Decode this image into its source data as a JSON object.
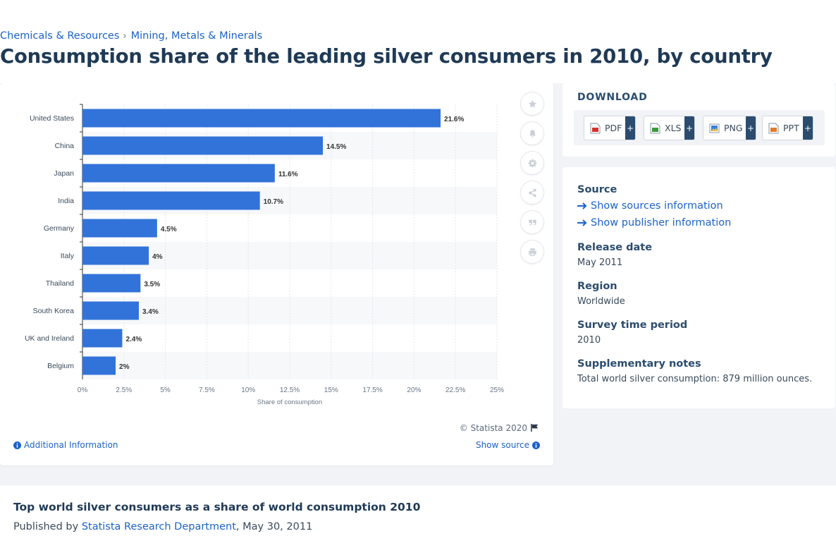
{
  "breadcrumb": {
    "items": [
      "Chemicals & Resources",
      "Mining, Metals & Minerals"
    ],
    "separator": "›"
  },
  "page_title": "Consumption share of the leading silver consumers in 2010, by country",
  "colors": {
    "bar": "#3273d9",
    "accent_blue": "#1c63c8",
    "navy": "#2b4c6f"
  },
  "tools": [
    {
      "icon": "star-icon",
      "name": "favorite"
    },
    {
      "icon": "bell-icon",
      "name": "notification"
    },
    {
      "icon": "gear-icon",
      "name": "settings"
    },
    {
      "icon": "share-icon",
      "name": "share"
    },
    {
      "icon": "quote-icon",
      "name": "cite"
    },
    {
      "icon": "print-icon",
      "name": "print"
    }
  ],
  "chart_data": {
    "type": "bar",
    "orientation": "horizontal",
    "categories": [
      "United States",
      "China",
      "Japan",
      "India",
      "Germany",
      "Italy",
      "Thailand",
      "South Korea",
      "UK and Ireland",
      "Belgium"
    ],
    "values": [
      21.6,
      14.5,
      11.6,
      10.7,
      4.5,
      4,
      3.5,
      3.4,
      2.4,
      2
    ],
    "value_labels": [
      "21.6%",
      "14.5%",
      "11.6%",
      "10.7%",
      "4.5%",
      "4%",
      "3.5%",
      "3.4%",
      "2.4%",
      "2%"
    ],
    "xticks": [
      "0%",
      "2.5%",
      "5%",
      "7.5%",
      "10%",
      "12.5%",
      "15%",
      "17.5%",
      "20%",
      "22.5%",
      "25%"
    ],
    "xlim": [
      0,
      25
    ],
    "xlabel": "Share of consumption",
    "ylabel": "",
    "grid": true,
    "legend": "none"
  },
  "chart_footer": {
    "credit": "© Statista 2020",
    "additional_info": "Additional Information",
    "show_source": "Show source"
  },
  "download": {
    "title": "DOWNLOAD",
    "buttons": [
      {
        "label": "PDF",
        "plus": "+"
      },
      {
        "label": "XLS",
        "plus": "+"
      },
      {
        "label": "PNG",
        "plus": "+"
      },
      {
        "label": "PPT",
        "plus": "+"
      }
    ]
  },
  "info": {
    "source_heading": "Source",
    "show_sources": "Show sources information",
    "show_publisher": "Show publisher information",
    "release_heading": "Release date",
    "release_value": "May 2011",
    "region_heading": "Region",
    "region_value": "Worldwide",
    "survey_heading": "Survey time period",
    "survey_value": "2010",
    "notes_heading": "Supplementary notes",
    "notes_value": "Total world silver consumption: 879 million ounces."
  },
  "bottom": {
    "title": "Top world silver consumers as a share of world consumption 2010",
    "published_by_label": "Published by",
    "publisher": "Statista Research Department",
    "date": ", May 30, 2011"
  }
}
